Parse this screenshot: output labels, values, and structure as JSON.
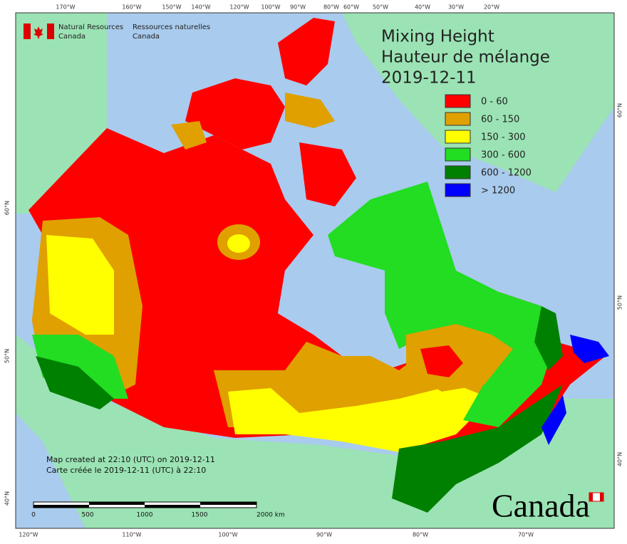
{
  "header": {
    "title": [
      "Mixing Height",
      "Hauteur de mélange",
      "2019-12-11"
    ]
  },
  "logo": {
    "english": [
      "Natural Resources",
      "Canada"
    ],
    "french": [
      "Ressources naturelles",
      "Canada"
    ]
  },
  "legend": {
    "items": [
      {
        "label": "0 - 60",
        "color": "#ff0000"
      },
      {
        "label": "60 - 150",
        "color": "#e0a000"
      },
      {
        "label": "150 - 300",
        "color": "#ffff00"
      },
      {
        "label": "300 - 600",
        "color": "#22dd22"
      },
      {
        "label": "600 - 1200",
        "color": "#008000"
      },
      {
        "label": "> 1200",
        "color": "#0000ff"
      }
    ]
  },
  "notes": [
    "Map created at 22:10 (UTC) on 2019-12-11",
    "Carte créée le 2019-12-11 (UTC) à 22:10"
  ],
  "scale": {
    "labels": [
      "0",
      "500",
      "1000",
      "1500",
      "2000 km"
    ]
  },
  "graticule": {
    "top": [
      "170°W",
      "160°W",
      "150°W",
      "140°W",
      "120°W",
      "100°W",
      "90°W",
      "80°W",
      "60°W",
      "50°W",
      "40°W",
      "30°W",
      "20°W"
    ],
    "bottom": [
      "120°W",
      "110°W",
      "100°W",
      "90°W",
      "80°W",
      "70°W"
    ],
    "left": [
      "60°N",
      "50°N",
      "40°N"
    ],
    "right": [
      "60°N",
      "50°N",
      "40°N"
    ]
  },
  "wordmark": "Canada"
}
